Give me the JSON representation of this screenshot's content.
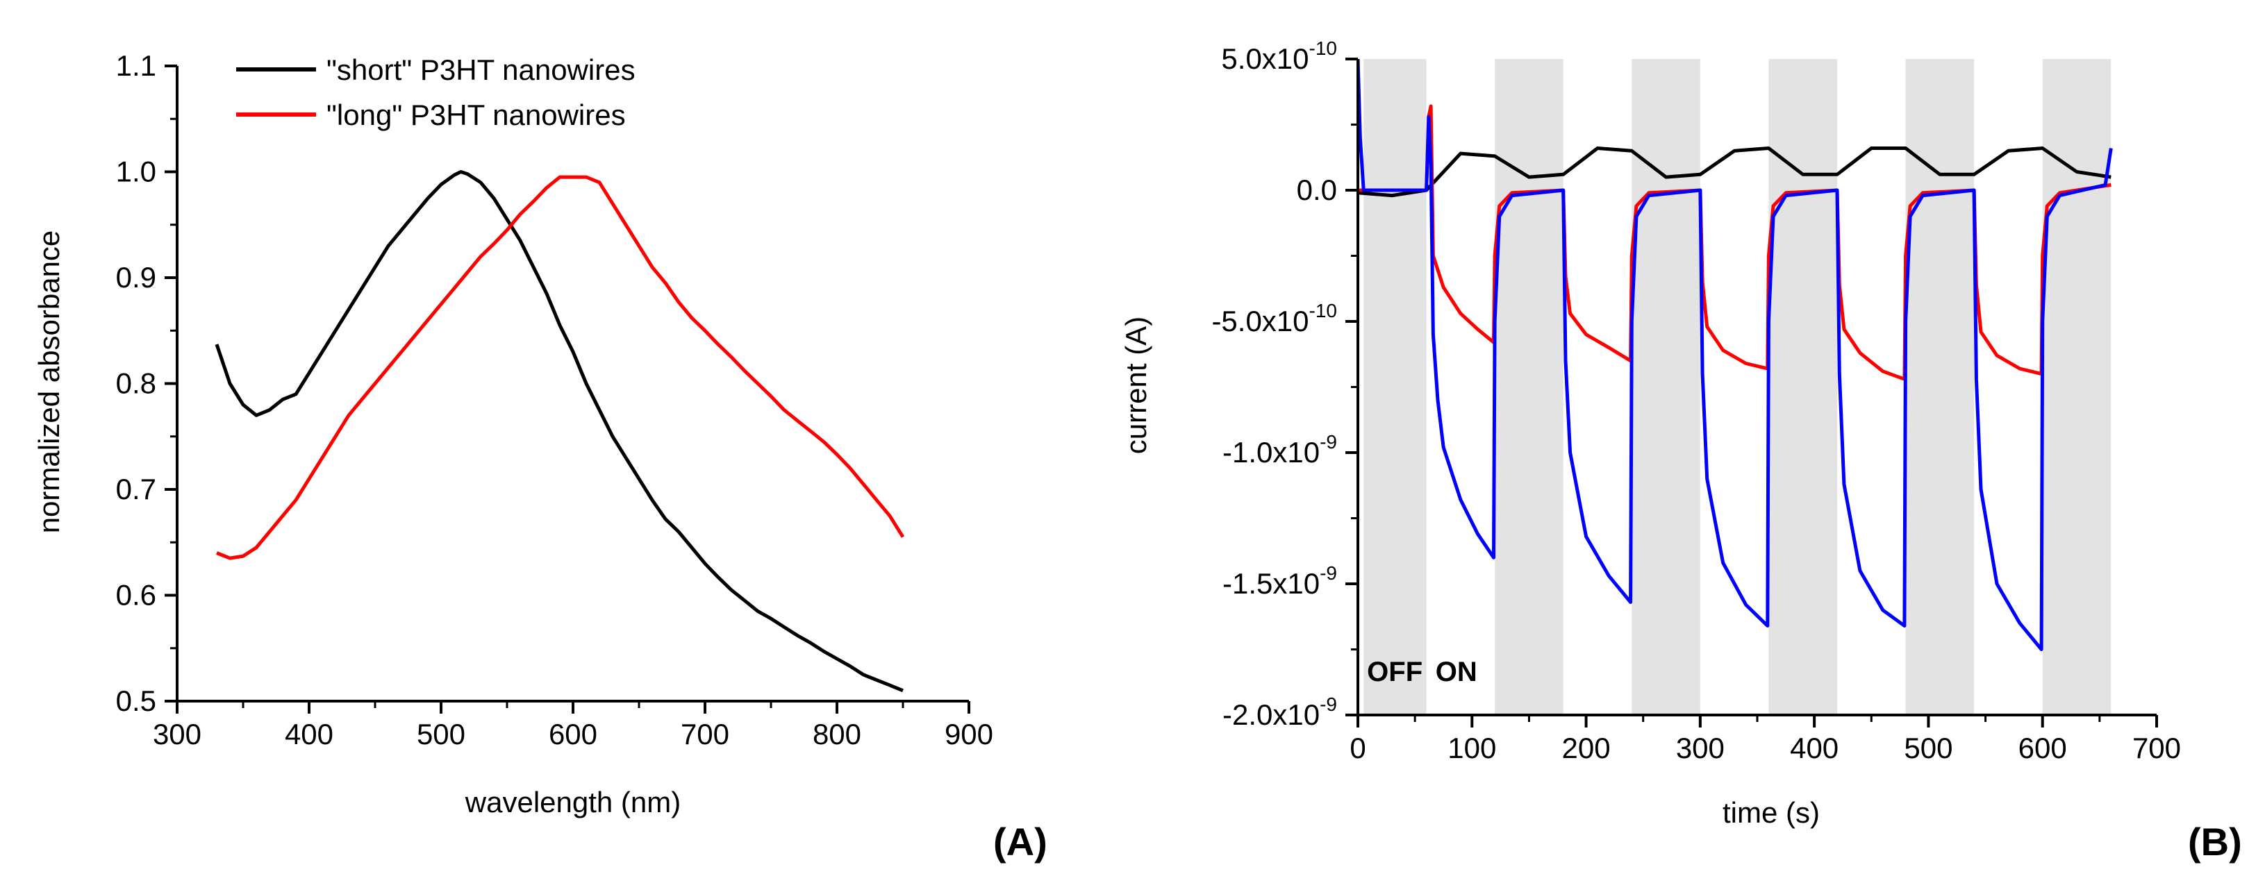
{
  "chart_data": [
    {
      "type": "line",
      "panel_label": "(A)",
      "xlabel": "wavelength (nm)",
      "ylabel": "normalized absorbance",
      "xlim": [
        300,
        900
      ],
      "ylim": [
        0.5,
        1.1
      ],
      "xticks": [
        300,
        400,
        500,
        600,
        700,
        800,
        900
      ],
      "yticks": [
        0.5,
        0.6,
        0.7,
        0.8,
        0.9,
        1.0,
        1.1
      ],
      "ytick_labels": [
        "0.5",
        "0.6",
        "0.7",
        "0.8",
        "0.9",
        "1.0",
        "1.1"
      ],
      "legend_position": "top-left",
      "grid": false,
      "series": [
        {
          "name": "\"short\" P3HT nanowires",
          "color": "#000000",
          "x": [
            330,
            340,
            350,
            360,
            370,
            380,
            390,
            400,
            410,
            420,
            430,
            440,
            450,
            460,
            470,
            480,
            490,
            500,
            510,
            515,
            520,
            530,
            540,
            550,
            560,
            570,
            580,
            590,
            600,
            610,
            620,
            630,
            640,
            650,
            660,
            670,
            680,
            690,
            700,
            710,
            720,
            730,
            740,
            750,
            760,
            770,
            780,
            790,
            800,
            810,
            820,
            830,
            840,
            850
          ],
          "y": [
            0.837,
            0.8,
            0.78,
            0.77,
            0.775,
            0.785,
            0.79,
            0.81,
            0.83,
            0.85,
            0.87,
            0.89,
            0.91,
            0.93,
            0.945,
            0.96,
            0.975,
            0.988,
            0.997,
            1.0,
            0.998,
            0.99,
            0.975,
            0.955,
            0.935,
            0.91,
            0.885,
            0.855,
            0.83,
            0.8,
            0.775,
            0.75,
            0.73,
            0.71,
            0.69,
            0.672,
            0.66,
            0.645,
            0.63,
            0.617,
            0.605,
            0.595,
            0.585,
            0.578,
            0.57,
            0.562,
            0.555,
            0.547,
            0.54,
            0.533,
            0.525,
            0.52,
            0.515,
            0.51
          ]
        },
        {
          "name": "\"long\" P3HT nanowires",
          "color": "#ff0000",
          "x": [
            330,
            340,
            350,
            360,
            370,
            380,
            390,
            400,
            410,
            420,
            430,
            440,
            450,
            460,
            470,
            480,
            490,
            500,
            510,
            520,
            530,
            540,
            550,
            560,
            570,
            580,
            590,
            600,
            610,
            620,
            630,
            640,
            650,
            660,
            670,
            680,
            690,
            700,
            710,
            720,
            730,
            740,
            750,
            760,
            770,
            780,
            790,
            800,
            810,
            820,
            830,
            840,
            850
          ],
          "y": [
            0.64,
            0.635,
            0.637,
            0.645,
            0.66,
            0.675,
            0.69,
            0.71,
            0.73,
            0.75,
            0.77,
            0.785,
            0.8,
            0.815,
            0.83,
            0.845,
            0.86,
            0.875,
            0.89,
            0.905,
            0.92,
            0.932,
            0.945,
            0.96,
            0.972,
            0.985,
            0.995,
            0.995,
            0.995,
            0.99,
            0.97,
            0.95,
            0.93,
            0.91,
            0.895,
            0.877,
            0.862,
            0.85,
            0.837,
            0.825,
            0.812,
            0.8,
            0.788,
            0.775,
            0.765,
            0.755,
            0.745,
            0.733,
            0.72,
            0.705,
            0.69,
            0.675,
            0.655
          ]
        }
      ]
    },
    {
      "type": "line",
      "panel_label": "(B)",
      "xlabel": "time (s)",
      "ylabel": "current (A)",
      "xlim": [
        0,
        700
      ],
      "ylim": [
        -2e-09,
        5e-10
      ],
      "xticks": [
        0,
        100,
        200,
        300,
        400,
        500,
        600,
        700
      ],
      "yticks": [
        -2e-09,
        -1.5e-09,
        -1e-09,
        -5e-10,
        0.0,
        5e-10
      ],
      "ytick_labels": [
        {
          "base": "-2.0x10",
          "exp": "-9"
        },
        {
          "base": "-1.5x10",
          "exp": "-9"
        },
        {
          "base": "-1.0x10",
          "exp": "-9"
        },
        {
          "base": "-5.0x10",
          "exp": "-10"
        },
        {
          "base": "0.0",
          "exp": ""
        },
        {
          "base": "5.0x10",
          "exp": "-10"
        }
      ],
      "grid": false,
      "shaded_intervals": [
        [
          5,
          60
        ],
        [
          120,
          180
        ],
        [
          240,
          300
        ],
        [
          360,
          420
        ],
        [
          480,
          540
        ],
        [
          600,
          660
        ]
      ],
      "annotations": [
        {
          "text": "OFF",
          "x": 8,
          "y": -1.87e-09
        },
        {
          "text": "ON",
          "x": 68,
          "y": -1.87e-09
        }
      ],
      "series": [
        {
          "color": "#000000",
          "x": [
            0,
            30,
            60,
            90,
            120,
            150,
            180,
            210,
            240,
            270,
            300,
            330,
            360,
            390,
            420,
            450,
            480,
            510,
            540,
            570,
            600,
            630,
            660
          ],
          "y": [
            -1e-11,
            -2e-11,
            0.0,
            1.4e-10,
            1.3e-10,
            5e-11,
            6e-11,
            1.6e-10,
            1.5e-10,
            5e-11,
            6e-11,
            1.5e-10,
            1.6e-10,
            6e-11,
            6e-11,
            1.6e-10,
            1.6e-10,
            6e-11,
            6e-11,
            1.5e-10,
            1.6e-10,
            7e-11,
            5e-11
          ]
        },
        {
          "color": "#ff0000",
          "x": [
            0,
            60,
            62,
            64,
            66,
            75,
            90,
            105,
            119,
            120,
            124,
            135,
            180,
            182,
            186,
            200,
            220,
            239,
            240,
            244,
            255,
            300,
            302,
            306,
            320,
            340,
            359,
            360,
            364,
            375,
            420,
            422,
            426,
            440,
            460,
            479,
            480,
            484,
            495,
            540,
            542,
            546,
            560,
            580,
            599,
            600,
            604,
            615,
            660
          ],
          "y": [
            0.0,
            0.0,
            2.8e-10,
            3.2e-10,
            -2.5e-10,
            -3.7e-10,
            -4.7e-10,
            -5.3e-10,
            -5.8e-10,
            -2.5e-10,
            -6e-11,
            -1e-11,
            0.0,
            -3.3e-10,
            -4.7e-10,
            -5.5e-10,
            -6e-10,
            -6.5e-10,
            -2.5e-10,
            -6e-11,
            -1e-11,
            0.0,
            -3.5e-10,
            -5.2e-10,
            -6.1e-10,
            -6.6e-10,
            -6.8e-10,
            -2.5e-10,
            -6e-11,
            -1e-11,
            0.0,
            -3.6e-10,
            -5.3e-10,
            -6.2e-10,
            -6.9e-10,
            -7.2e-10,
            -2.5e-10,
            -6e-11,
            -1e-11,
            0.0,
            -3.6e-10,
            -5.4e-10,
            -6.3e-10,
            -6.8e-10,
            -7e-10,
            -2.5e-10,
            -6e-11,
            -1e-11,
            2e-11
          ]
        },
        {
          "color": "#0000ff",
          "x": [
            0,
            2,
            5,
            10,
            60,
            62,
            64,
            66,
            70,
            75,
            90,
            105,
            119,
            120,
            124,
            135,
            180,
            182,
            186,
            200,
            220,
            239,
            240,
            244,
            255,
            300,
            302,
            306,
            320,
            340,
            359,
            360,
            364,
            375,
            420,
            422,
            426,
            440,
            460,
            479,
            480,
            484,
            495,
            540,
            542,
            546,
            560,
            580,
            599,
            600,
            604,
            615,
            655,
            660
          ],
          "y": [
            5e-10,
            2e-10,
            0.0,
            0.0,
            0.0,
            2.8e-10,
            1e-10,
            -5.5e-10,
            -8e-10,
            -9.8e-10,
            -1.18e-09,
            -1.31e-09,
            -1.4e-09,
            -5e-10,
            -1e-10,
            -2e-11,
            0.0,
            -6.5e-10,
            -1e-09,
            -1.32e-09,
            -1.47e-09,
            -1.57e-09,
            -5e-10,
            -1e-10,
            -2e-11,
            0.0,
            -7e-10,
            -1.1e-09,
            -1.42e-09,
            -1.58e-09,
            -1.66e-09,
            -5e-10,
            -1e-10,
            -2e-11,
            0.0,
            -7e-10,
            -1.12e-09,
            -1.45e-09,
            -1.6e-09,
            -1.66e-09,
            -5e-10,
            -1e-10,
            -2e-11,
            0.0,
            -7.2e-10,
            -1.14e-09,
            -1.5e-09,
            -1.65e-09,
            -1.75e-09,
            -5e-10,
            -1e-10,
            -2e-11,
            2e-11,
            1.6e-10
          ]
        }
      ]
    }
  ]
}
